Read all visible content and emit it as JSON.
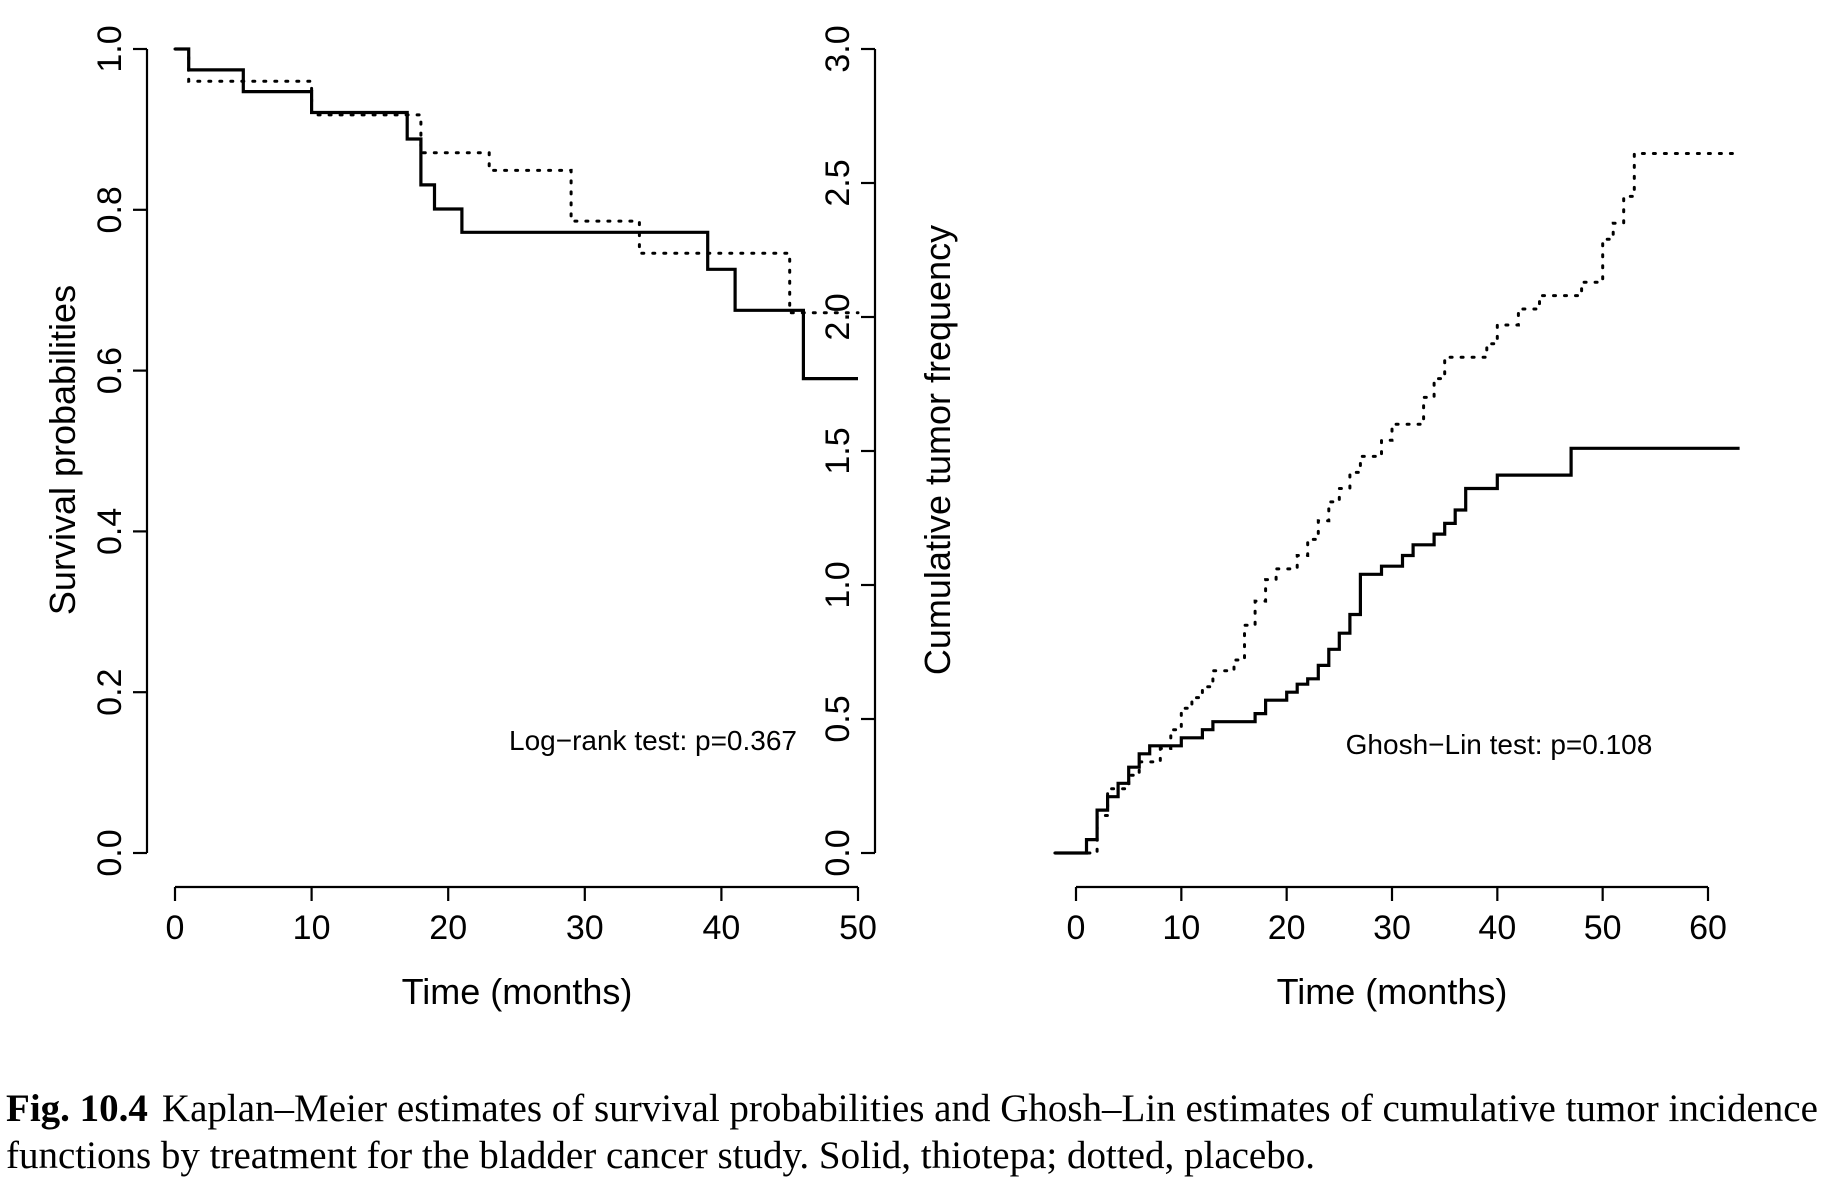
{
  "chart_data": [
    {
      "type": "line",
      "step": true,
      "title": "",
      "xlabel": "Time (months)",
      "ylabel": "Survival probabilities",
      "xlim": [
        0,
        50
      ],
      "ylim": [
        0,
        1
      ],
      "xticks": [
        "0",
        "10",
        "20",
        "30",
        "40",
        "50"
      ],
      "yticks": [
        "0.0",
        "0.2",
        "0.4",
        "0.6",
        "0.8",
        "1.0"
      ],
      "annotation": "Log−rank test: p=0.367",
      "series": [
        {
          "style": "solid",
          "x": [
            0,
            1,
            5,
            10,
            17,
            18,
            19,
            21,
            39,
            41,
            46,
            50
          ],
          "y": [
            1.0,
            0.974,
            0.947,
            0.921,
            0.888,
            0.831,
            0.801,
            0.772,
            0.726,
            0.675,
            0.59,
            0.59
          ]
        },
        {
          "style": "dotted",
          "x": [
            0,
            1,
            10,
            18,
            23,
            29,
            30,
            34,
            45,
            50
          ],
          "y": [
            1.0,
            0.96,
            0.918,
            0.871,
            0.849,
            0.786,
            0.786,
            0.746,
            0.672,
            0.672
          ]
        }
      ]
    },
    {
      "type": "line",
      "step": true,
      "title": "",
      "xlabel": "Time (months)",
      "ylabel": "Cumulative tumor frequency",
      "xlim": [
        0,
        60
      ],
      "ylim": [
        0,
        3
      ],
      "xticks": [
        "0",
        "10",
        "20",
        "30",
        "40",
        "50",
        "60"
      ],
      "yticks": [
        "0.0",
        "0.5",
        "1.0",
        "1.5",
        "2.0",
        "2.5",
        "3.0"
      ],
      "annotation": "Ghosh−Lin test: p=0.108",
      "series": [
        {
          "style": "solid",
          "x": [
            -2,
            1,
            2,
            3,
            4,
            5,
            6,
            7,
            10,
            12,
            13,
            17,
            18,
            20,
            21,
            22,
            23,
            24,
            25,
            26,
            27,
            29,
            31,
            32,
            34,
            35,
            36,
            37,
            38,
            40,
            47,
            63
          ],
          "y": [
            0,
            0.05,
            0.16,
            0.21,
            0.26,
            0.32,
            0.37,
            0.4,
            0.43,
            0.46,
            0.49,
            0.52,
            0.57,
            0.6,
            0.63,
            0.65,
            0.7,
            0.76,
            0.82,
            0.89,
            1.04,
            1.07,
            1.11,
            1.15,
            1.19,
            1.23,
            1.28,
            1.36,
            1.36,
            1.41,
            1.51,
            1.51
          ]
        },
        {
          "style": "dotted",
          "x": [
            -2,
            2,
            3,
            5,
            6,
            8,
            9,
            10,
            11,
            12,
            13,
            15,
            16,
            17,
            18,
            19,
            21,
            22,
            23,
            24,
            25,
            26,
            27,
            29,
            30,
            33,
            34,
            35,
            38,
            39,
            40,
            42,
            44,
            48,
            50,
            51,
            52,
            53,
            63
          ],
          "y": [
            0,
            0.14,
            0.24,
            0.29,
            0.34,
            0.39,
            0.46,
            0.54,
            0.58,
            0.62,
            0.68,
            0.72,
            0.85,
            0.94,
            1.02,
            1.06,
            1.11,
            1.17,
            1.24,
            1.31,
            1.36,
            1.42,
            1.48,
            1.54,
            1.6,
            1.7,
            1.77,
            1.85,
            1.85,
            1.9,
            1.97,
            2.03,
            2.08,
            2.13,
            2.29,
            2.35,
            2.45,
            2.61,
            2.61
          ]
        }
      ]
    }
  ],
  "caption": {
    "label": "Fig. 10.4",
    "text": "Kaplan–Meier estimates of survival probabilities and Ghosh–Lin estimates of cumulative tumor incidence functions by treatment for the bladder cancer study. Solid, thiotepa; dotted, placebo."
  }
}
